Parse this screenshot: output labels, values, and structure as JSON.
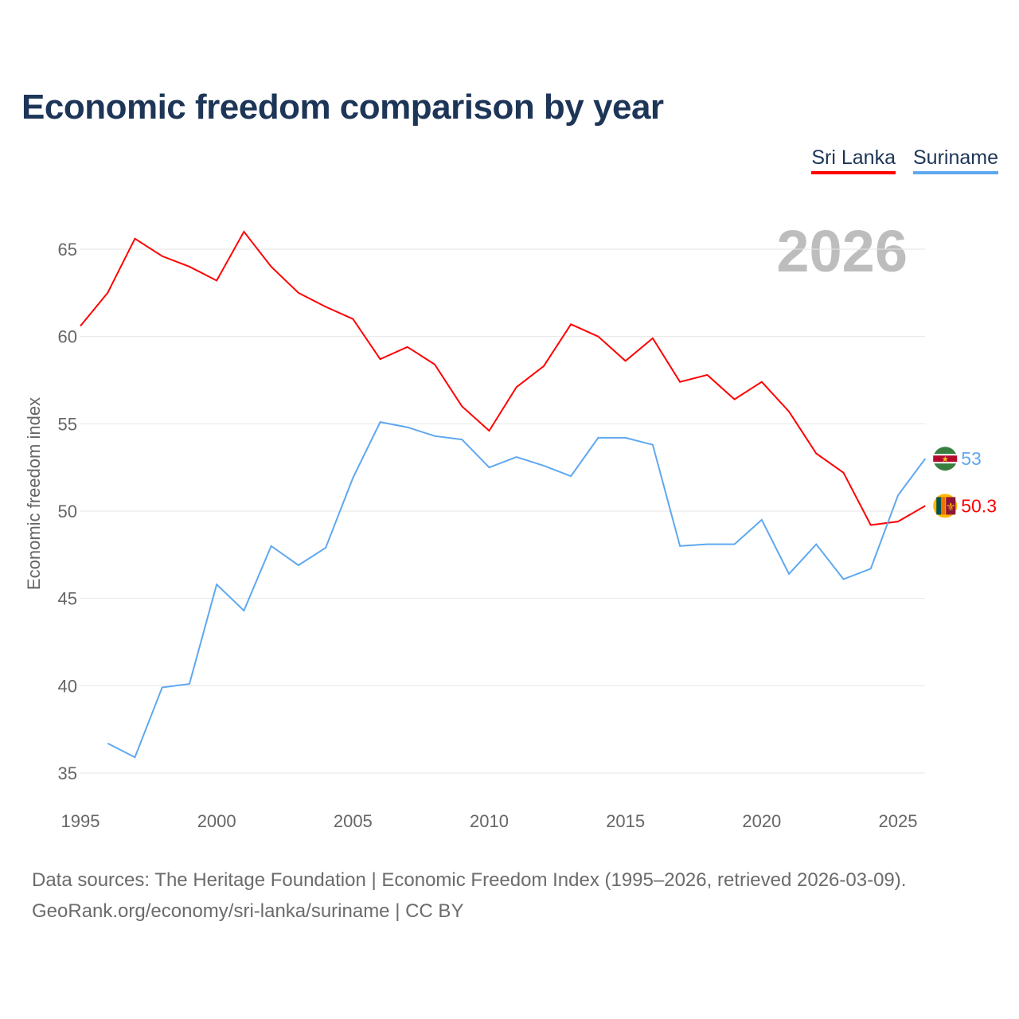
{
  "title": "Economic freedom comparison by year",
  "legend": [
    {
      "label": "Sri Lanka",
      "color": "#ff0000"
    },
    {
      "label": "Suriname",
      "color": "#5fa8f0"
    }
  ],
  "year_label": "2026",
  "footer": {
    "line1": "Data sources: The Heritage Foundation | Economic Freedom Index (1995–2026, retrieved 2026-03-09).",
    "line2": "GeoRank.org/economy/sri-lanka/suriname | CC BY"
  },
  "chart_data": {
    "type": "line",
    "title": "Economic freedom comparison by year",
    "xlabel": "",
    "ylabel": "Economic freedom index",
    "xlim": [
      1995,
      2026
    ],
    "ylim": [
      35,
      67
    ],
    "xticks": [
      1995,
      2000,
      2005,
      2010,
      2015,
      2020,
      2025
    ],
    "yticks": [
      35,
      40,
      45,
      50,
      55,
      60,
      65
    ],
    "grid": true,
    "legend_position": "top-right",
    "series": [
      {
        "name": "Sri Lanka",
        "color": "#ff0000",
        "end_label": "50.3",
        "x": [
          1995,
          1996,
          1997,
          1998,
          1999,
          2000,
          2001,
          2002,
          2003,
          2004,
          2005,
          2006,
          2007,
          2008,
          2009,
          2010,
          2011,
          2012,
          2013,
          2014,
          2015,
          2016,
          2017,
          2018,
          2019,
          2020,
          2021,
          2022,
          2023,
          2024,
          2025,
          2026
        ],
        "values": [
          60.6,
          62.5,
          65.6,
          64.6,
          64.0,
          63.2,
          66.0,
          64.0,
          62.5,
          61.7,
          61.0,
          58.7,
          59.4,
          58.4,
          56.0,
          54.6,
          57.1,
          58.3,
          60.7,
          60.0,
          58.6,
          59.9,
          57.4,
          57.8,
          56.4,
          57.4,
          55.7,
          53.3,
          52.2,
          49.2,
          49.4,
          50.3
        ]
      },
      {
        "name": "Suriname",
        "color": "#5fa8f0",
        "end_label": "53",
        "x": [
          1996,
          1997,
          1998,
          1999,
          2000,
          2001,
          2002,
          2003,
          2004,
          2005,
          2006,
          2007,
          2008,
          2009,
          2010,
          2011,
          2012,
          2013,
          2014,
          2015,
          2016,
          2017,
          2018,
          2019,
          2020,
          2021,
          2022,
          2023,
          2024,
          2025,
          2026
        ],
        "values": [
          36.7,
          35.9,
          39.9,
          40.1,
          45.8,
          44.3,
          48.0,
          46.9,
          47.9,
          51.9,
          55.1,
          54.8,
          54.3,
          54.1,
          52.5,
          53.1,
          52.6,
          52.0,
          54.2,
          54.2,
          53.8,
          48.0,
          48.1,
          48.1,
          49.5,
          46.4,
          48.1,
          46.1,
          46.7,
          50.9,
          53.0
        ]
      }
    ]
  }
}
